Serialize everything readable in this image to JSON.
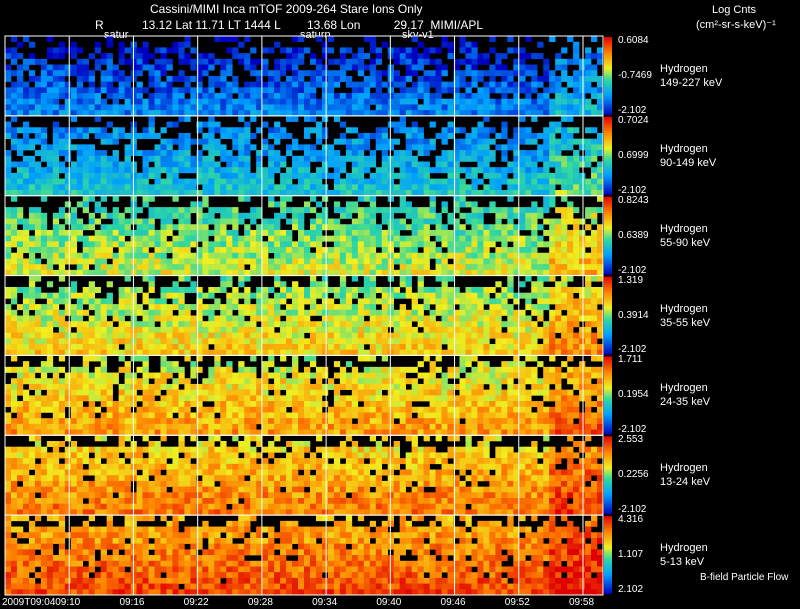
{
  "header": {
    "title": "Cassini/MIMI Inca mTOF  2009-264   Stare    Ions Only",
    "r_label": "R",
    "ephemeris": "13.12 Lat 11.71 LT 1444 L        13.68 Lon          29.17  MIMI/APL",
    "units_top": "Log Cnts",
    "units_bottom": "(cm²-sr-s-keV)⁻¹",
    "markers": [
      "satur",
      "saturn",
      "sky-v1"
    ]
  },
  "footer": {
    "flow_label": "B-field Particle Flow"
  },
  "chart_data": {
    "type": "heatmap",
    "x_ticks": [
      "2009T09:04",
      "09:10",
      "09:16",
      "09:22",
      "09:28",
      "09:34",
      "09:40",
      "09:46",
      "09:52",
      "09:58"
    ],
    "panels": [
      {
        "species": "Hydrogen",
        "energy": "149-227 keV",
        "cb_max": "0.6084",
        "cb_mid": "-0.7469",
        "cb_min": "-2.102",
        "level": 0.12
      },
      {
        "species": "Hydrogen",
        "energy": "90-149 keV",
        "cb_max": "0.7024",
        "cb_mid": "0.6999",
        "cb_min": "-2.102",
        "level": 0.28
      },
      {
        "species": "Hydrogen",
        "energy": "55-90 keV",
        "cb_max": "0.8243",
        "cb_mid": "0.6389",
        "cb_min": "-2.102",
        "level": 0.5
      },
      {
        "species": "Hydrogen",
        "energy": "35-55 keV",
        "cb_max": "1.319",
        "cb_mid": "0.3914",
        "cb_min": "-2.102",
        "level": 0.58
      },
      {
        "species": "Hydrogen",
        "energy": "24-35 keV",
        "cb_max": "1.711",
        "cb_mid": "0.1954",
        "cb_min": "-2.102",
        "level": 0.66
      },
      {
        "species": "Hydrogen",
        "energy": "13-24 keV",
        "cb_max": "2.553",
        "cb_mid": "0.2256",
        "cb_min": "-2.102",
        "level": 0.72
      },
      {
        "species": "Hydrogen",
        "energy": "5-13 keV",
        "cb_max": "4.316",
        "cb_mid": "1.107",
        "cb_min": "2.102",
        "level": 0.8
      }
    ]
  }
}
